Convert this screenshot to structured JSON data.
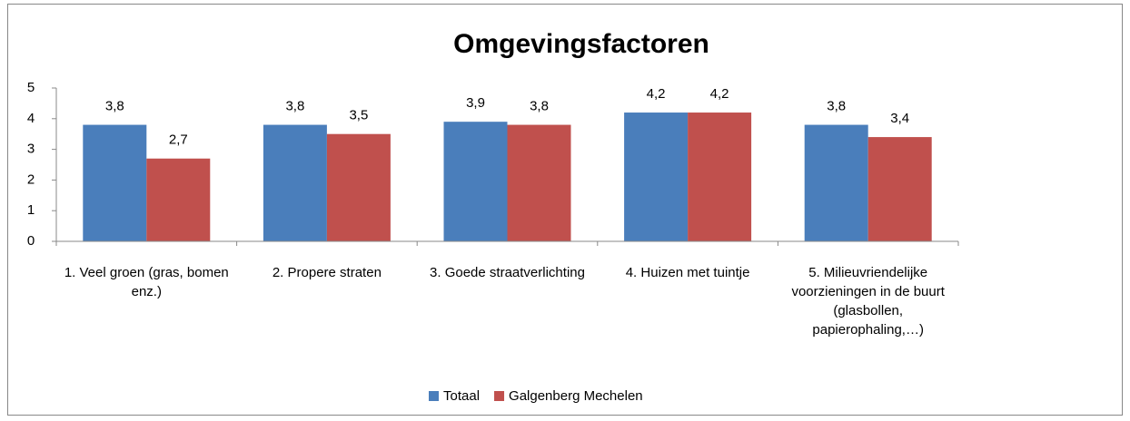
{
  "chart_data": {
    "type": "bar",
    "title": "Omgevingsfactoren",
    "categories": [
      "1. Veel groen (gras, bomen enz.)",
      "2. Propere straten",
      "3. Goede straatverlichting",
      "4. Huizen met tuintje",
      "5. Milieuvriendelijke voorzieningen in de buurt (glasbollen, papierophaling,…)"
    ],
    "series": [
      {
        "name": "Totaal",
        "color": "#4a7ebb",
        "values": [
          3.8,
          3.8,
          3.9,
          4.2,
          3.8
        ],
        "value_labels": [
          "3,8",
          "3,8",
          "3,9",
          "4,2",
          "3,8"
        ]
      },
      {
        "name": "Galgenberg Mechelen",
        "color": "#c0504d",
        "values": [
          2.7,
          3.5,
          3.8,
          4.2,
          3.4
        ],
        "value_labels": [
          "2,7",
          "3,5",
          "3,8",
          "4,2",
          "3,4"
        ]
      }
    ],
    "ylim": [
      0,
      5
    ],
    "yticks": [
      0,
      1,
      2,
      3,
      4,
      5
    ],
    "grid": false,
    "legend": "bottom"
  }
}
